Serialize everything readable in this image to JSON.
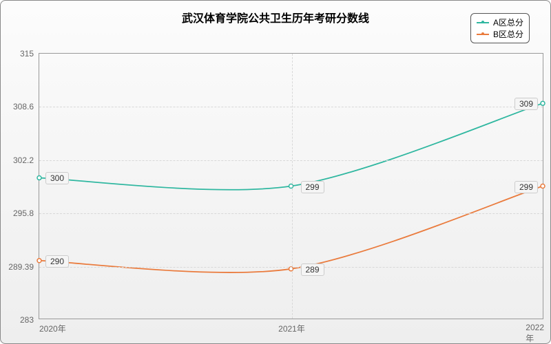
{
  "chart": {
    "type": "line",
    "title": "武汉体育学院公共卫生历年考研分数线",
    "title_fontsize": 16,
    "title_fontweight": "bold",
    "background_gradient_top": "#fcfcfc",
    "background_gradient_bottom": "#eeeeee",
    "border_color": "#888888",
    "grid_color": "#d8d8d8",
    "axis_color": "#999999",
    "tick_label_fontsize": 12,
    "tick_label_color": "#666666",
    "data_label_fontsize": 12,
    "data_label_bg": "#f5f5f5",
    "data_label_border": "#cccccc",
    "x": {
      "categories": [
        "2020年",
        "2021年",
        "2022年"
      ],
      "positions": [
        0,
        0.5,
        1
      ]
    },
    "y": {
      "min": 283,
      "max": 315,
      "ticks": [
        283,
        289.39,
        295.8,
        302.2,
        308.6,
        315
      ]
    },
    "series": [
      {
        "name": "A区总分",
        "color": "#2fb7a0",
        "marker": "circle",
        "line_width": 1.8,
        "values": [
          300,
          299,
          309
        ]
      },
      {
        "name": "B区总分",
        "color": "#ea7b3d",
        "marker": "circle",
        "line_width": 1.8,
        "values": [
          290,
          289,
          299
        ]
      }
    ],
    "legend": {
      "position": "top-right",
      "fontsize": 12,
      "border_color": "#555555",
      "background": "#ffffff"
    }
  }
}
